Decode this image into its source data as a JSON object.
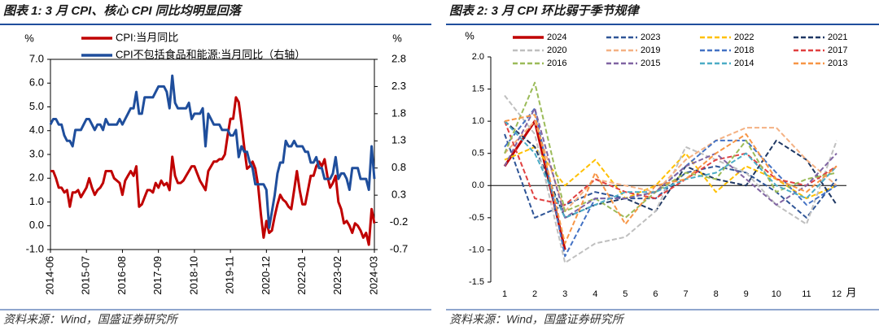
{
  "chart_data": [
    {
      "type": "line",
      "title": "图表 1: 3 月 CPI、核心 CPI 同比均明显回落",
      "source": "资料来源：Wind，国盛证券研究所",
      "ylabel": "%",
      "y2label": "%",
      "ylim": [
        -1,
        7
      ],
      "yticks": [
        {
          "value": -1,
          "label": "-1.0"
        },
        {
          "value": 0,
          "label": "0.0"
        },
        {
          "value": 1,
          "label": "1.0"
        },
        {
          "value": 2,
          "label": "2.0"
        },
        {
          "value": 3,
          "label": "3.0"
        },
        {
          "value": 4,
          "label": "4.0"
        },
        {
          "value": 5,
          "label": "5.0"
        },
        {
          "value": 6,
          "label": "6.0"
        },
        {
          "value": 7,
          "label": "7.0"
        }
      ],
      "y2lim": [
        -0.7,
        2.8
      ],
      "y2ticks": [
        -0.7,
        -0.2,
        0.3,
        0.8,
        1.3,
        1.8,
        2.3,
        2.8
      ],
      "legend": "top-left",
      "categories": [
        "2014-06",
        null,
        null,
        null,
        null,
        null,
        null,
        null,
        null,
        null,
        null,
        null,
        null,
        "2015-07",
        null,
        null,
        null,
        null,
        null,
        null,
        null,
        null,
        null,
        null,
        null,
        null,
        "2016-08",
        null,
        null,
        null,
        null,
        null,
        null,
        null,
        null,
        null,
        null,
        null,
        null,
        "2017-09",
        null,
        null,
        null,
        null,
        null,
        null,
        null,
        null,
        null,
        null,
        null,
        null,
        "2018-10",
        null,
        null,
        null,
        null,
        null,
        null,
        null,
        null,
        null,
        null,
        null,
        null,
        "2019-11",
        null,
        null,
        null,
        null,
        null,
        null,
        null,
        null,
        null,
        null,
        null,
        null,
        "2020-12",
        null,
        null,
        null,
        null,
        null,
        null,
        null,
        null,
        null,
        null,
        null,
        null,
        "2022-01",
        null,
        null,
        null,
        null,
        null,
        null,
        null,
        null,
        null,
        null,
        null,
        null,
        "2023-02",
        null,
        null,
        null,
        null,
        null,
        null,
        null,
        null,
        null,
        null,
        null,
        null,
        "2024-03"
      ],
      "series": [
        {
          "name": "CPI:当月同比",
          "color": "#c00000",
          "axis": "y",
          "values": [
            2.3,
            2.3,
            2.0,
            1.6,
            1.6,
            1.4,
            1.5,
            0.8,
            1.4,
            1.4,
            1.5,
            1.2,
            1.4,
            1.6,
            2.0,
            1.6,
            1.3,
            1.5,
            1.6,
            1.8,
            2.3,
            2.3,
            2.3,
            2.0,
            1.9,
            1.8,
            1.3,
            1.9,
            2.1,
            2.3,
            2.1,
            2.5,
            0.8,
            0.9,
            1.2,
            1.5,
            1.5,
            1.4,
            1.8,
            1.6,
            1.9,
            1.7,
            1.8,
            1.5,
            2.9,
            2.1,
            1.8,
            1.8,
            1.9,
            2.1,
            2.3,
            2.5,
            2.5,
            2.2,
            1.9,
            1.7,
            1.5,
            2.3,
            2.5,
            2.7,
            2.7,
            2.8,
            2.8,
            3.0,
            3.8,
            4.5,
            4.5,
            5.4,
            5.2,
            4.3,
            3.3,
            2.4,
            2.5,
            2.7,
            2.4,
            1.7,
            0.5,
            -0.5,
            0.2,
            -0.3,
            -0.2,
            0.4,
            0.9,
            1.3,
            1.1,
            1.0,
            0.8,
            0.7,
            1.5,
            2.3,
            1.5,
            0.9,
            0.9,
            1.5,
            2.1,
            2.1,
            2.5,
            2.7,
            2.5,
            2.8,
            2.1,
            1.6,
            1.8,
            2.1,
            1.0,
            0.7,
            0.1,
            0.2,
            0.0,
            -0.3,
            0.1,
            0.0,
            -0.2,
            -0.5,
            -0.3,
            -0.8,
            0.7,
            0.1
          ]
        },
        {
          "name": "CPI不包括食品和能源:当月同比（右轴）",
          "color": "#1f4e9c",
          "axis": "y2",
          "values": [
            1.6,
            1.7,
            1.7,
            1.6,
            1.6,
            1.4,
            1.3,
            1.3,
            1.2,
            1.5,
            1.5,
            1.5,
            1.6,
            1.7,
            1.7,
            1.6,
            1.5,
            1.6,
            1.6,
            1.5,
            1.7,
            1.6,
            1.6,
            1.6,
            1.6,
            1.7,
            1.6,
            1.7,
            1.8,
            1.9,
            1.9,
            2.2,
            1.8,
            1.8,
            2.1,
            2.1,
            2.1,
            2.1,
            2.2,
            2.3,
            2.3,
            2.3,
            2.2,
            1.9,
            2.5,
            2.0,
            1.9,
            1.9,
            1.9,
            1.9,
            2.0,
            1.7,
            1.8,
            1.8,
            1.8,
            1.9,
            1.2,
            1.8,
            1.7,
            1.6,
            1.6,
            1.6,
            1.5,
            1.5,
            1.5,
            1.4,
            1.4,
            1.5,
            1.0,
            1.2,
            1.1,
            1.1,
            0.9,
            0.8,
            0.5,
            0.5,
            0.5,
            0.5,
            0.4,
            -0.3,
            0.0,
            0.3,
            0.7,
            0.9,
            0.9,
            1.3,
            1.2,
            1.2,
            1.3,
            1.2,
            1.2,
            1.2,
            1.1,
            1.1,
            0.9,
            0.9,
            1.0,
            0.8,
            0.8,
            0.6,
            0.6,
            0.6,
            0.7,
            1.0,
            0.6,
            0.7,
            0.7,
            0.6,
            0.4,
            0.8,
            0.8,
            0.8,
            0.6,
            0.6,
            0.6,
            0.4,
            1.2,
            0.6
          ]
        }
      ]
    },
    {
      "type": "line",
      "title": "图表 2: 3 月 CPI 环比弱于季节规律",
      "source": "资料来源：Wind，国盛证券研究所",
      "ylabel": "%",
      "xlabel": "月",
      "ylim": [
        -1.5,
        2
      ],
      "yticks": [
        -1.5,
        {
          "value": -1,
          "label": "-1.0"
        },
        -0.5,
        {
          "value": 0,
          "label": "0.0"
        },
        0.5,
        {
          "value": 1,
          "label": "1.0"
        },
        1.5,
        {
          "value": 2,
          "label": "2.0"
        }
      ],
      "legend": "top",
      "categories": [
        "1",
        "2",
        "3",
        "4",
        "5",
        "6",
        "7",
        "8",
        "9",
        "10",
        "11",
        "12"
      ],
      "series": [
        {
          "name": "2024",
          "color": "#c00000",
          "dashed": false,
          "values": [
            0.3,
            1.0,
            -1.0,
            null,
            null,
            null,
            null,
            null,
            null,
            null,
            null,
            null
          ]
        },
        {
          "name": "2023",
          "color": "#2f5597",
          "dashed": true,
          "values": [
            0.8,
            -0.5,
            -0.3,
            -0.1,
            -0.2,
            -0.2,
            0.2,
            0.3,
            0.2,
            -0.1,
            -0.5,
            0.1
          ]
        },
        {
          "name": "2022",
          "color": "#ffc000",
          "dashed": true,
          "values": [
            0.4,
            0.6,
            0.0,
            0.4,
            -0.2,
            0.0,
            0.5,
            -0.1,
            0.3,
            0.1,
            -0.2,
            0.0
          ]
        },
        {
          "name": "2021",
          "color": "#1f3864",
          "dashed": true,
          "values": [
            1.0,
            0.6,
            -0.5,
            -0.3,
            -0.2,
            -0.4,
            0.3,
            0.1,
            0.0,
            0.7,
            0.4,
            -0.3
          ]
        },
        {
          "name": "2020",
          "color": "#bfbfbf",
          "dashed": true,
          "values": [
            1.4,
            0.8,
            -1.2,
            -0.9,
            -0.8,
            -0.4,
            0.6,
            0.4,
            0.2,
            -0.3,
            -0.6,
            0.7
          ]
        },
        {
          "name": "2019",
          "color": "#f4b183",
          "dashed": true,
          "values": [
            0.5,
            1.0,
            -0.4,
            0.1,
            0.0,
            -0.1,
            0.4,
            0.7,
            0.9,
            0.9,
            0.4,
            0.0
          ]
        },
        {
          "name": "2018",
          "color": "#4472c4",
          "dashed": true,
          "values": [
            0.6,
            1.2,
            -1.1,
            -0.2,
            -0.2,
            -0.1,
            0.3,
            0.7,
            0.7,
            0.2,
            -0.3,
            0.0
          ]
        },
        {
          "name": "2017",
          "color": "#e04040",
          "dashed": true,
          "values": [
            1.0,
            -0.2,
            -0.3,
            0.1,
            -0.1,
            -0.2,
            0.1,
            0.4,
            0.5,
            0.1,
            0.0,
            0.3
          ]
        },
        {
          "name": "2016",
          "color": "#9bbb59",
          "dashed": true,
          "values": [
            0.5,
            1.6,
            -0.4,
            -0.2,
            -0.5,
            -0.1,
            0.2,
            0.1,
            0.7,
            -0.1,
            0.1,
            0.2
          ]
        },
        {
          "name": "2015",
          "color": "#8064a2",
          "dashed": true,
          "values": [
            0.3,
            1.2,
            -0.5,
            -0.2,
            -0.2,
            -0.1,
            0.3,
            0.5,
            0.1,
            -0.3,
            0.0,
            0.5
          ]
        },
        {
          "name": "2014",
          "color": "#4bacc6",
          "dashed": true,
          "values": [
            1.0,
            0.5,
            -0.5,
            -0.3,
            -0.1,
            -0.1,
            0.1,
            0.2,
            0.5,
            0.0,
            -0.2,
            0.3
          ]
        },
        {
          "name": "2013",
          "color": "#f79646",
          "dashed": true,
          "values": [
            1.0,
            1.1,
            -0.9,
            0.2,
            -0.6,
            0.0,
            0.1,
            0.5,
            0.8,
            0.1,
            -0.1,
            0.3
          ]
        }
      ]
    }
  ]
}
